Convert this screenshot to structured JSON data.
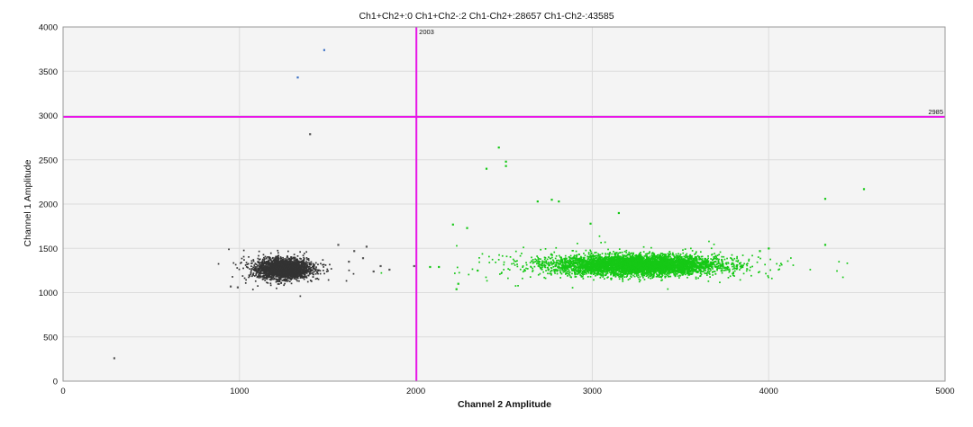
{
  "chart_data": {
    "type": "scatter",
    "title": "Ch1+Ch2+:0  Ch1+Ch2-:2  Ch1-Ch2+:28657  Ch1-Ch2-:43585",
    "xlabel": "Channel 2 Amplitude",
    "ylabel": "Channel 1 Amplitude",
    "xlim": [
      0,
      5000
    ],
    "ylim": [
      0,
      4000
    ],
    "x_ticks": [
      "0",
      "1000",
      "2000",
      "3000",
      "4000",
      "5000"
    ],
    "y_ticks": [
      "0",
      "500",
      "1000",
      "1500",
      "2000",
      "2500",
      "3000",
      "3500",
      "4000"
    ],
    "grid": true,
    "thresholds": {
      "vertical": {
        "value": 2003,
        "label": "2003"
      },
      "horizontal": {
        "value": 2985,
        "label": "2985"
      }
    },
    "clusters": [
      {
        "name": "Ch1-Ch2-",
        "color": "#333333",
        "center": [
          1250,
          1270
        ],
        "spread": [
          70,
          55
        ],
        "core_points": 2600
      },
      {
        "name": "Ch1-Ch2+",
        "color": "#16c816",
        "center": [
          3250,
          1310
        ],
        "spread": [
          230,
          55
        ],
        "core_points": 5200
      }
    ],
    "outliers": [
      {
        "x": 1480,
        "y": 3740,
        "color": "#3a6fc4"
      },
      {
        "x": 1330,
        "y": 3430,
        "color": "#3a6fc4"
      },
      {
        "x": 1400,
        "y": 2790,
        "color": "#555555"
      },
      {
        "x": 290,
        "y": 260,
        "color": "#555555"
      },
      {
        "x": 950,
        "y": 1070,
        "color": "#555555"
      },
      {
        "x": 990,
        "y": 1060,
        "color": "#555555"
      },
      {
        "x": 1560,
        "y": 1540,
        "color": "#555555"
      },
      {
        "x": 1650,
        "y": 1470,
        "color": "#555555"
      },
      {
        "x": 1720,
        "y": 1520,
        "color": "#555555"
      },
      {
        "x": 1700,
        "y": 1390,
        "color": "#555555"
      },
      {
        "x": 1800,
        "y": 1300,
        "color": "#555555"
      },
      {
        "x": 1760,
        "y": 1240,
        "color": "#555555"
      },
      {
        "x": 1850,
        "y": 1260,
        "color": "#555555"
      },
      {
        "x": 1990,
        "y": 1300,
        "color": "#555555"
      },
      {
        "x": 1620,
        "y": 1350,
        "color": "#555555"
      },
      {
        "x": 2470,
        "y": 2640,
        "color": "#16c816"
      },
      {
        "x": 2510,
        "y": 2480,
        "color": "#16c816"
      },
      {
        "x": 2400,
        "y": 2400,
        "color": "#16c816"
      },
      {
        "x": 2510,
        "y": 2430,
        "color": "#16c816"
      },
      {
        "x": 2770,
        "y": 2050,
        "color": "#16c816"
      },
      {
        "x": 2690,
        "y": 2030,
        "color": "#16c816"
      },
      {
        "x": 2810,
        "y": 2030,
        "color": "#16c816"
      },
      {
        "x": 3150,
        "y": 1900,
        "color": "#16c816"
      },
      {
        "x": 2990,
        "y": 1780,
        "color": "#16c816"
      },
      {
        "x": 2210,
        "y": 1770,
        "color": "#16c816"
      },
      {
        "x": 2290,
        "y": 1730,
        "color": "#16c816"
      },
      {
        "x": 4320,
        "y": 2060,
        "color": "#16c816"
      },
      {
        "x": 4540,
        "y": 2170,
        "color": "#16c816"
      },
      {
        "x": 4320,
        "y": 1540,
        "color": "#16c816"
      },
      {
        "x": 4000,
        "y": 1500,
        "color": "#16c816"
      },
      {
        "x": 3950,
        "y": 1470,
        "color": "#16c816"
      },
      {
        "x": 2130,
        "y": 1290,
        "color": "#16c816"
      },
      {
        "x": 2080,
        "y": 1290,
        "color": "#16c816"
      },
      {
        "x": 2230,
        "y": 1040,
        "color": "#16c816"
      },
      {
        "x": 2240,
        "y": 1100,
        "color": "#16c816"
      },
      {
        "x": 2350,
        "y": 1250,
        "color": "#16c816"
      }
    ]
  }
}
